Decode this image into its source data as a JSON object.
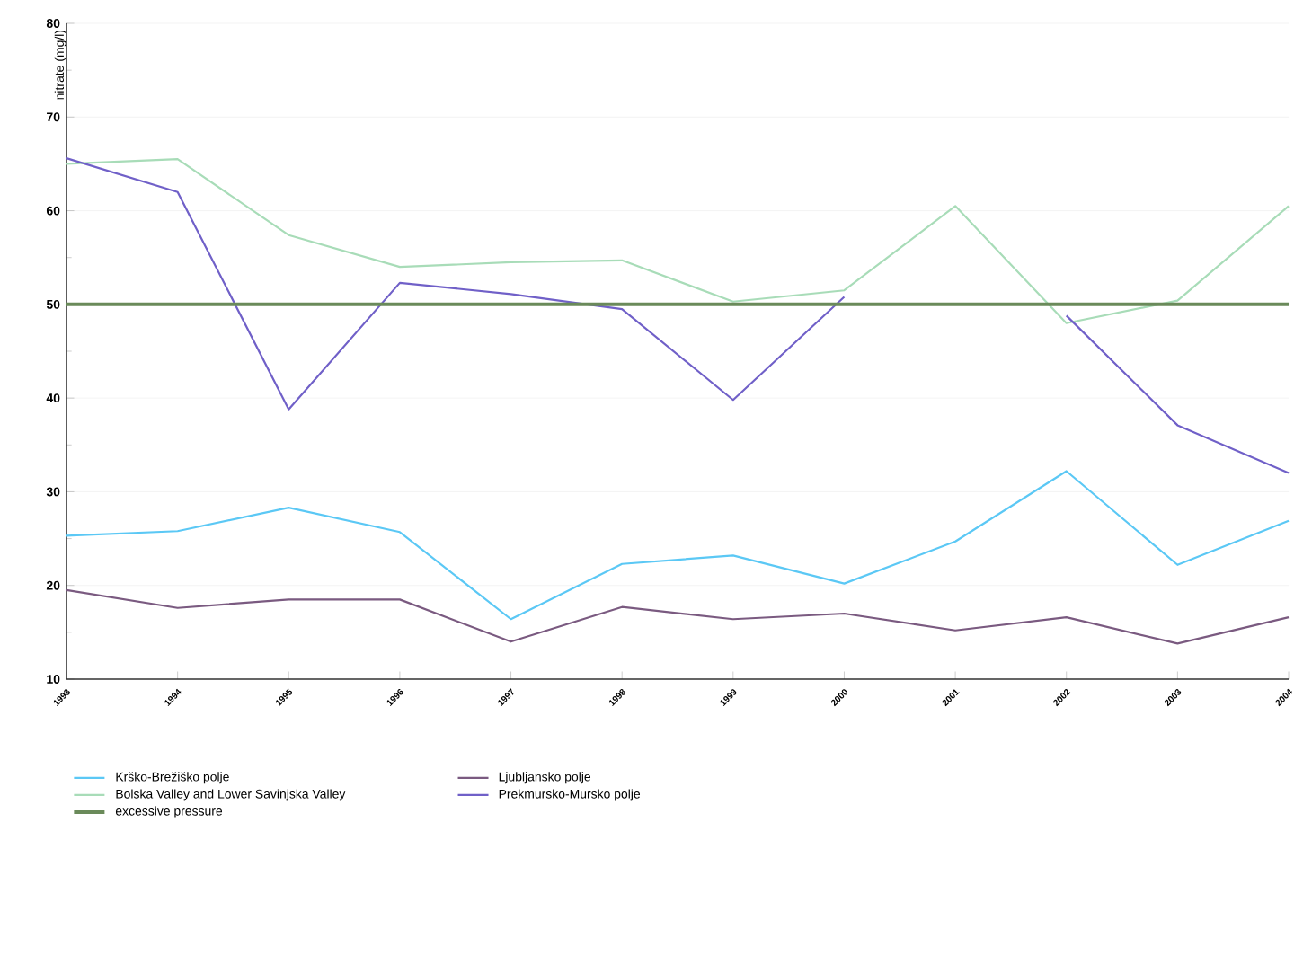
{
  "chart_data": {
    "type": "line",
    "ylabel": "nitrate (mg/l)",
    "categories": [
      "1993",
      "1994",
      "1995",
      "1996",
      "1997",
      "1998",
      "1999",
      "2000",
      "2001",
      "2002",
      "2003",
      "2004"
    ],
    "series": [
      {
        "name": "Krško-Brežiško polje",
        "color": "#5bc8f5",
        "values": [
          25.3,
          25.8,
          28.3,
          25.7,
          16.4,
          22.3,
          23.2,
          20.2,
          24.7,
          32.2,
          22.2,
          26.9
        ]
      },
      {
        "name": "Ljubljansko polje",
        "color": "#7a5a80",
        "values": [
          19.5,
          17.6,
          18.5,
          18.5,
          14,
          17.7,
          16.4,
          17,
          15.2,
          16.6,
          13.8,
          16.6
        ]
      },
      {
        "name": "Bolska Valley and Lower Savinjska Valley",
        "color": "#a8dcb8",
        "values": [
          65,
          65.5,
          57.4,
          54,
          54.5,
          54.7,
          50.3,
          51.5,
          60.5,
          48,
          50.4,
          60.5
        ]
      },
      {
        "name": "Prekmursko-Mursko polje",
        "color": "#7060c8",
        "values": [
          65.6,
          62,
          38.8,
          52.3,
          51.1,
          49.5,
          39.8,
          50.8,
          null,
          48.8,
          37.1,
          32
        ]
      }
    ],
    "ref_lines": [
      {
        "axis": "y",
        "value": 50,
        "label": "excessive pressure",
        "color": "#6a8a5a"
      }
    ],
    "ylim": [
      10,
      80
    ],
    "yticks": [
      10,
      20,
      30,
      40,
      50,
      60,
      70,
      80
    ],
    "grid": "y",
    "legend": "bottom",
    "marker": "none",
    "line_style": "solid"
  }
}
